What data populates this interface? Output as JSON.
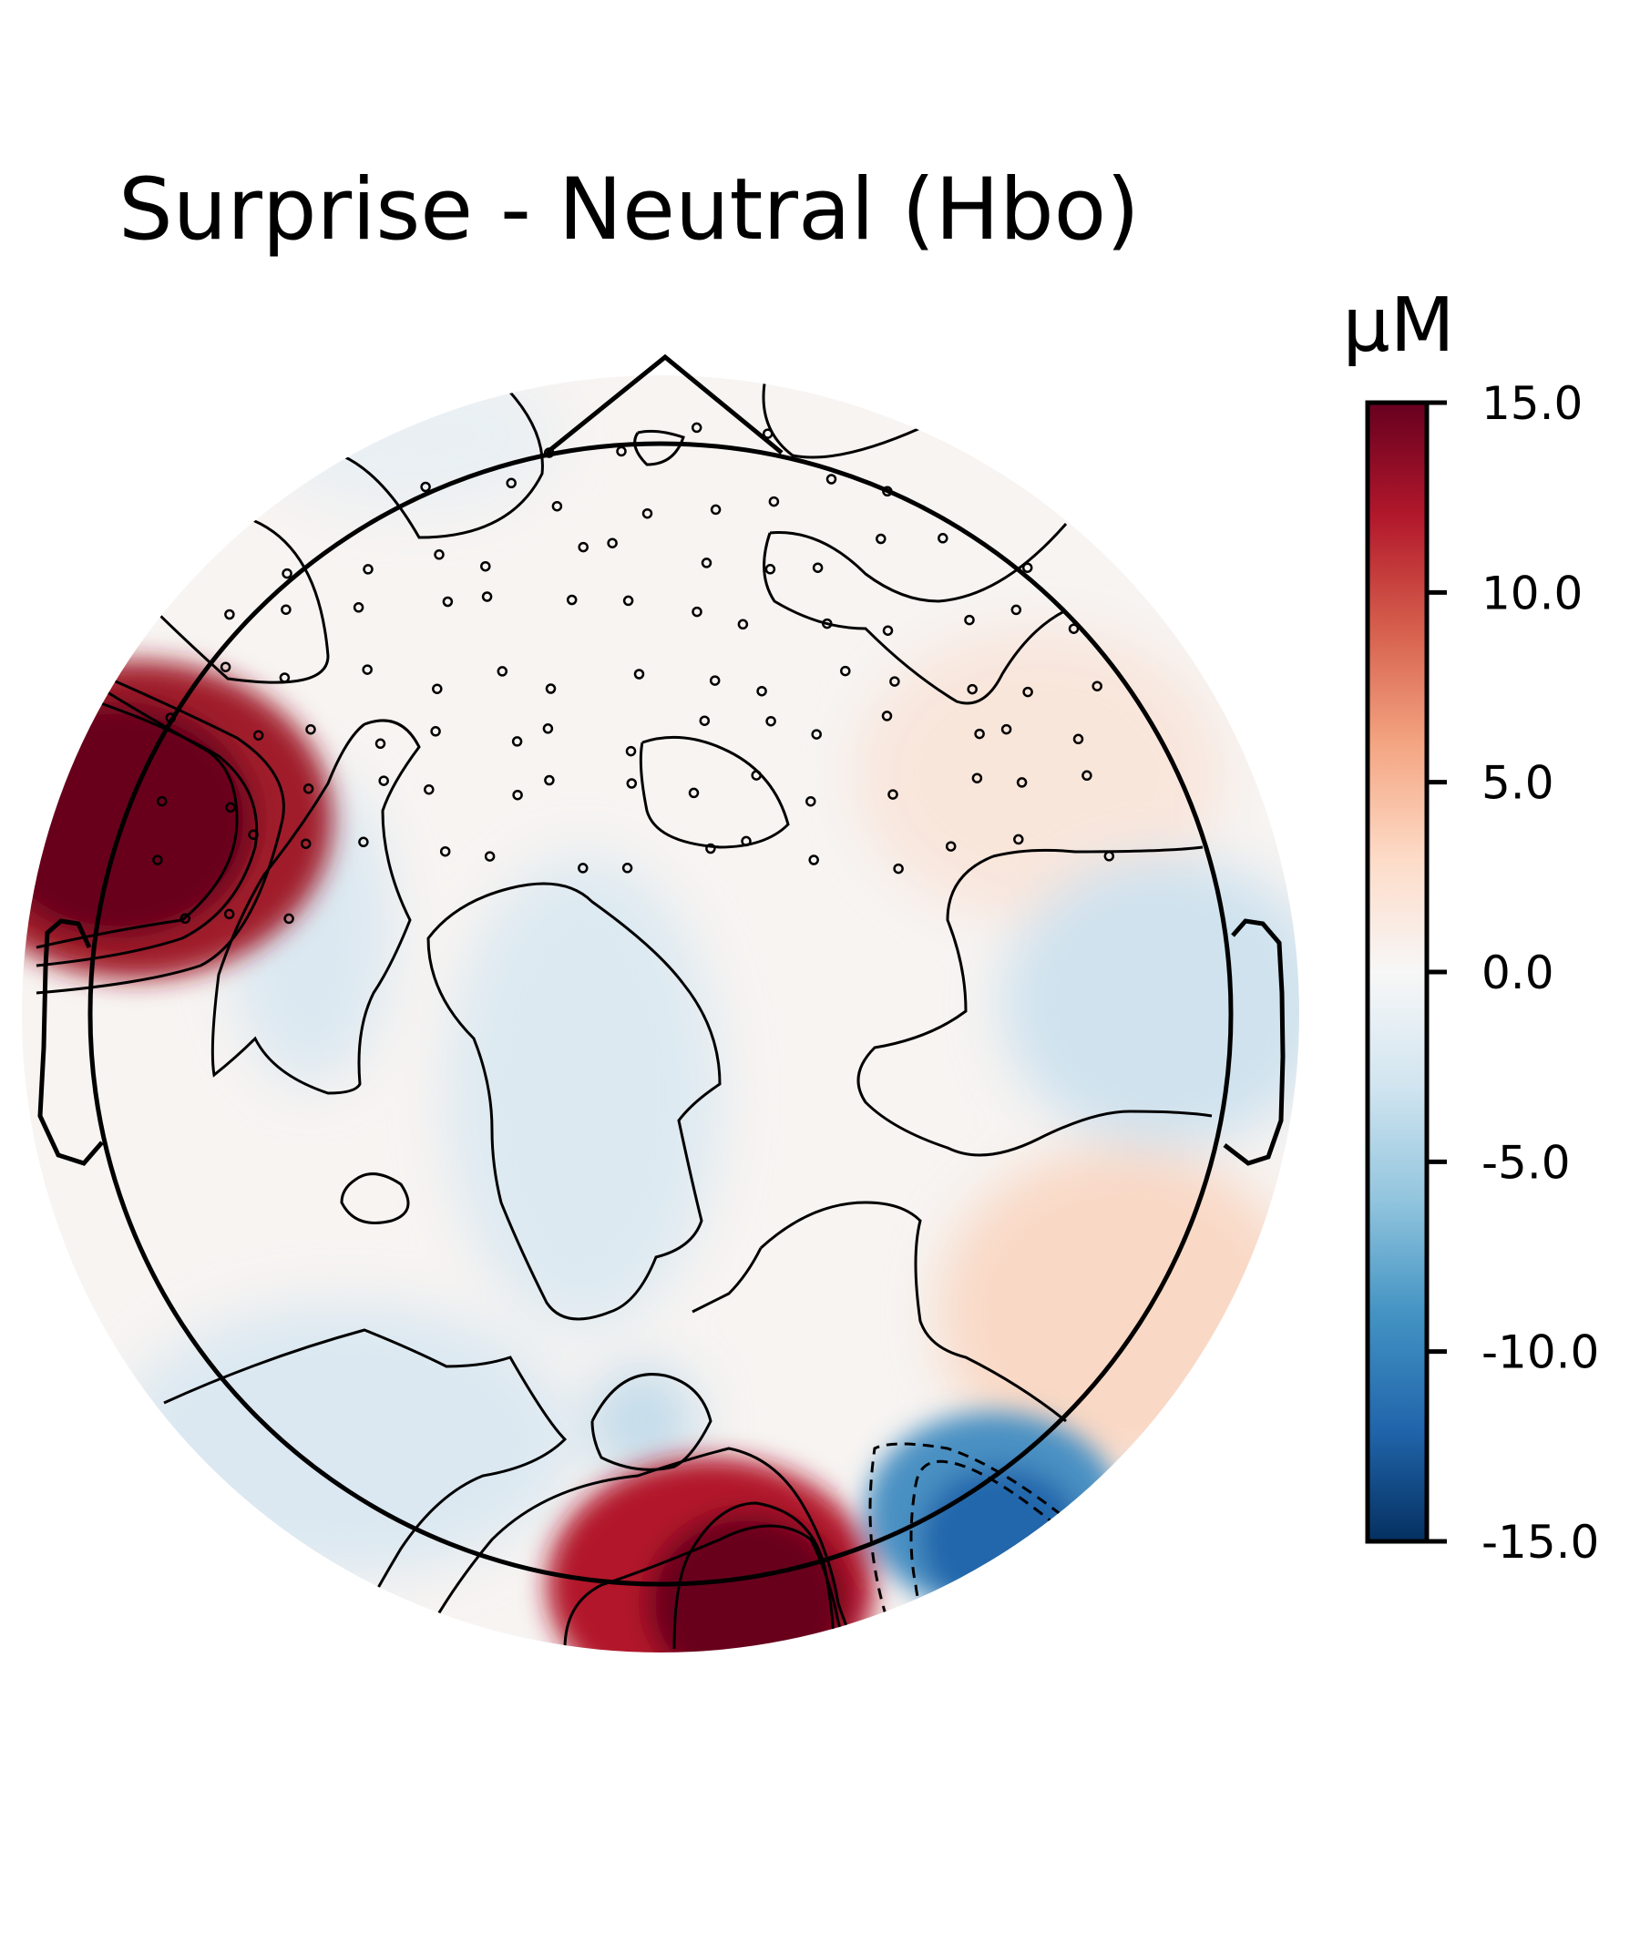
{
  "chart_data": {
    "type": "heatmap",
    "subtype": "topographic-head-map",
    "title": "Surprise - Neutral (Hbo)",
    "colorbar": {
      "label": "µM",
      "range": [
        -15.0,
        15.0
      ],
      "ticks": [
        15.0,
        10.0,
        5.0,
        0.0,
        -5.0,
        -10.0,
        -15.0
      ],
      "tick_labels": [
        "15.0",
        "10.0",
        "5.0",
        "0.0",
        "-5.0",
        "-10.0",
        "-15.0"
      ],
      "colormap": "RdBu_r",
      "colors": {
        "max": "#67001f",
        "mid": "#f7f7f7",
        "min": "#053061"
      }
    },
    "notable_regions": [
      {
        "location": "left-frontotemporal",
        "value": 15.0
      },
      {
        "location": "occipital-center",
        "value": 15.0
      },
      {
        "location": "right-occipital",
        "value": -11.0
      },
      {
        "location": "right-temporal",
        "value": -2.0
      },
      {
        "location": "central",
        "value": -1.5
      },
      {
        "location": "right-posterior-temporal",
        "value": 4.0
      }
    ],
    "sensor_count": 100,
    "contour_levels": [
      -10,
      -5,
      0,
      5,
      10
    ],
    "grid": false
  }
}
